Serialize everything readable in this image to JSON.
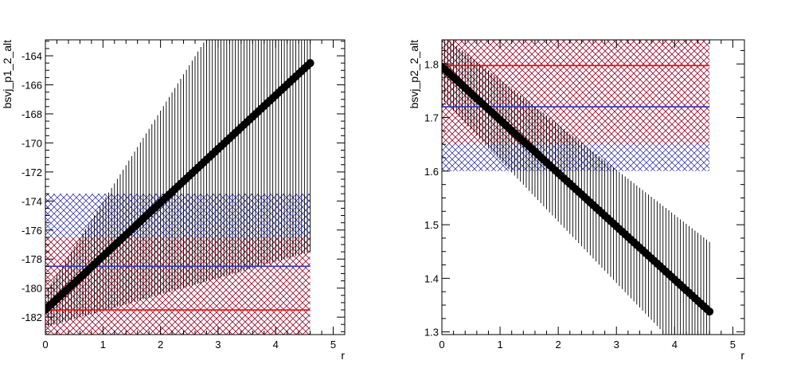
{
  "chart_data": [
    {
      "type": "scatter",
      "title": "",
      "xlabel": "r",
      "ylabel": "bsvj_p1_2_alt",
      "xlim": [
        0,
        5.2
      ],
      "ylim": [
        -183.2,
        -162.9
      ],
      "xticks": [
        0,
        1,
        2,
        3,
        4,
        5
      ],
      "yticks": [
        -182,
        -180,
        -178,
        -176,
        -174,
        -172,
        -170,
        -168,
        -166,
        -164
      ],
      "x_range": [
        0,
        4.6
      ],
      "series": [
        {
          "kind": "points",
          "y_start": -181.5,
          "y_end": -164.5,
          "err_start": 1.2,
          "err_end": 13,
          "color": "#000000"
        }
      ],
      "bands": [
        {
          "color": "#000099",
          "center": -178.5,
          "low": -183.2,
          "high": -173.5
        },
        {
          "color": "#cc0000",
          "center": -181.5,
          "low": -183.2,
          "high": -176.5
        }
      ],
      "colors": {
        "blue": "#000099",
        "red": "#cc0000"
      }
    },
    {
      "type": "scatter",
      "title": "",
      "xlabel": "r",
      "ylabel": "bsvj_p2_2_alt",
      "xlim": [
        0,
        5.2
      ],
      "ylim": [
        1.295,
        1.845
      ],
      "xticks": [
        0,
        1,
        2,
        3,
        4,
        5
      ],
      "yticks": [
        "1.3",
        "1.4",
        "1.5",
        "1.6",
        "1.7",
        "1.8"
      ],
      "x_range": [
        0,
        4.6
      ],
      "series": [
        {
          "kind": "points",
          "y_start": 1.795,
          "y_end": 1.338,
          "err_start": 0.06,
          "err_end": 0.13,
          "color": "#000000"
        }
      ],
      "bands": [
        {
          "color": "#000099",
          "center": 1.72,
          "low": 1.6,
          "high": 1.845
        },
        {
          "color": "#cc0000",
          "center": 1.797,
          "low": 1.65,
          "high": 1.845
        }
      ],
      "colors": {
        "blue": "#000099",
        "red": "#cc0000"
      }
    }
  ]
}
